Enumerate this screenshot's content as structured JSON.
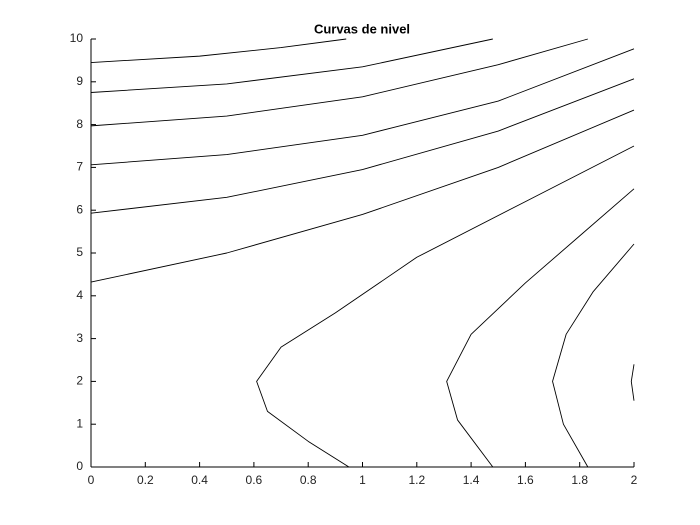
{
  "chart_data": {
    "type": "contour",
    "title": "Curvas de nivel",
    "color": "#000000",
    "xlim": [
      0,
      2
    ],
    "ylim": [
      0,
      10
    ],
    "xticks": [
      0,
      0.2,
      0.4,
      0.6,
      0.8,
      1,
      1.2,
      1.4,
      1.6,
      1.8,
      2
    ],
    "yticks": [
      0,
      1,
      2,
      3,
      4,
      5,
      6,
      7,
      8,
      9,
      10
    ],
    "lines": [
      {
        "x": [
          0,
          0.4,
          0.7,
          0.94
        ],
        "y": [
          9.45,
          9.6,
          9.8,
          10
        ]
      },
      {
        "x": [
          0,
          0.5,
          1,
          1.48
        ],
        "y": [
          8.75,
          8.95,
          9.35,
          10
        ]
      },
      {
        "x": [
          0,
          0.5,
          1,
          1.5,
          1.83
        ],
        "y": [
          7.97,
          8.2,
          8.65,
          9.4,
          10
        ]
      },
      {
        "x": [
          0,
          0.5,
          1,
          1.5,
          2
        ],
        "y": [
          7.06,
          7.3,
          7.75,
          8.55,
          9.77
        ]
      },
      {
        "x": [
          0,
          0.5,
          1,
          1.5,
          2
        ],
        "y": [
          5.93,
          6.3,
          6.95,
          7.85,
          9.07
        ]
      },
      {
        "x": [
          0,
          0.5,
          1,
          1.5,
          2
        ],
        "y": [
          4.32,
          5.0,
          5.9,
          7.0,
          8.34
        ]
      },
      {
        "x": [
          2,
          1.6,
          1.2,
          0.9,
          0.7,
          0.61,
          0.65,
          0.8,
          0.95
        ],
        "y": [
          7.5,
          6.2,
          4.9,
          3.6,
          2.8,
          2,
          1.3,
          0.6,
          0
        ]
      },
      {
        "x": [
          2,
          1.8,
          1.6,
          1.4,
          1.31,
          1.35,
          1.48
        ],
        "y": [
          6.5,
          5.4,
          4.3,
          3.1,
          2,
          1.1,
          0
        ]
      },
      {
        "x": [
          2,
          1.85,
          1.75,
          1.7,
          1.74,
          1.83
        ],
        "y": [
          5.21,
          4.1,
          3.1,
          2,
          1,
          0
        ]
      },
      {
        "x": [
          2,
          1.99,
          2
        ],
        "y": [
          2.4,
          2.0,
          1.55
        ]
      }
    ]
  }
}
